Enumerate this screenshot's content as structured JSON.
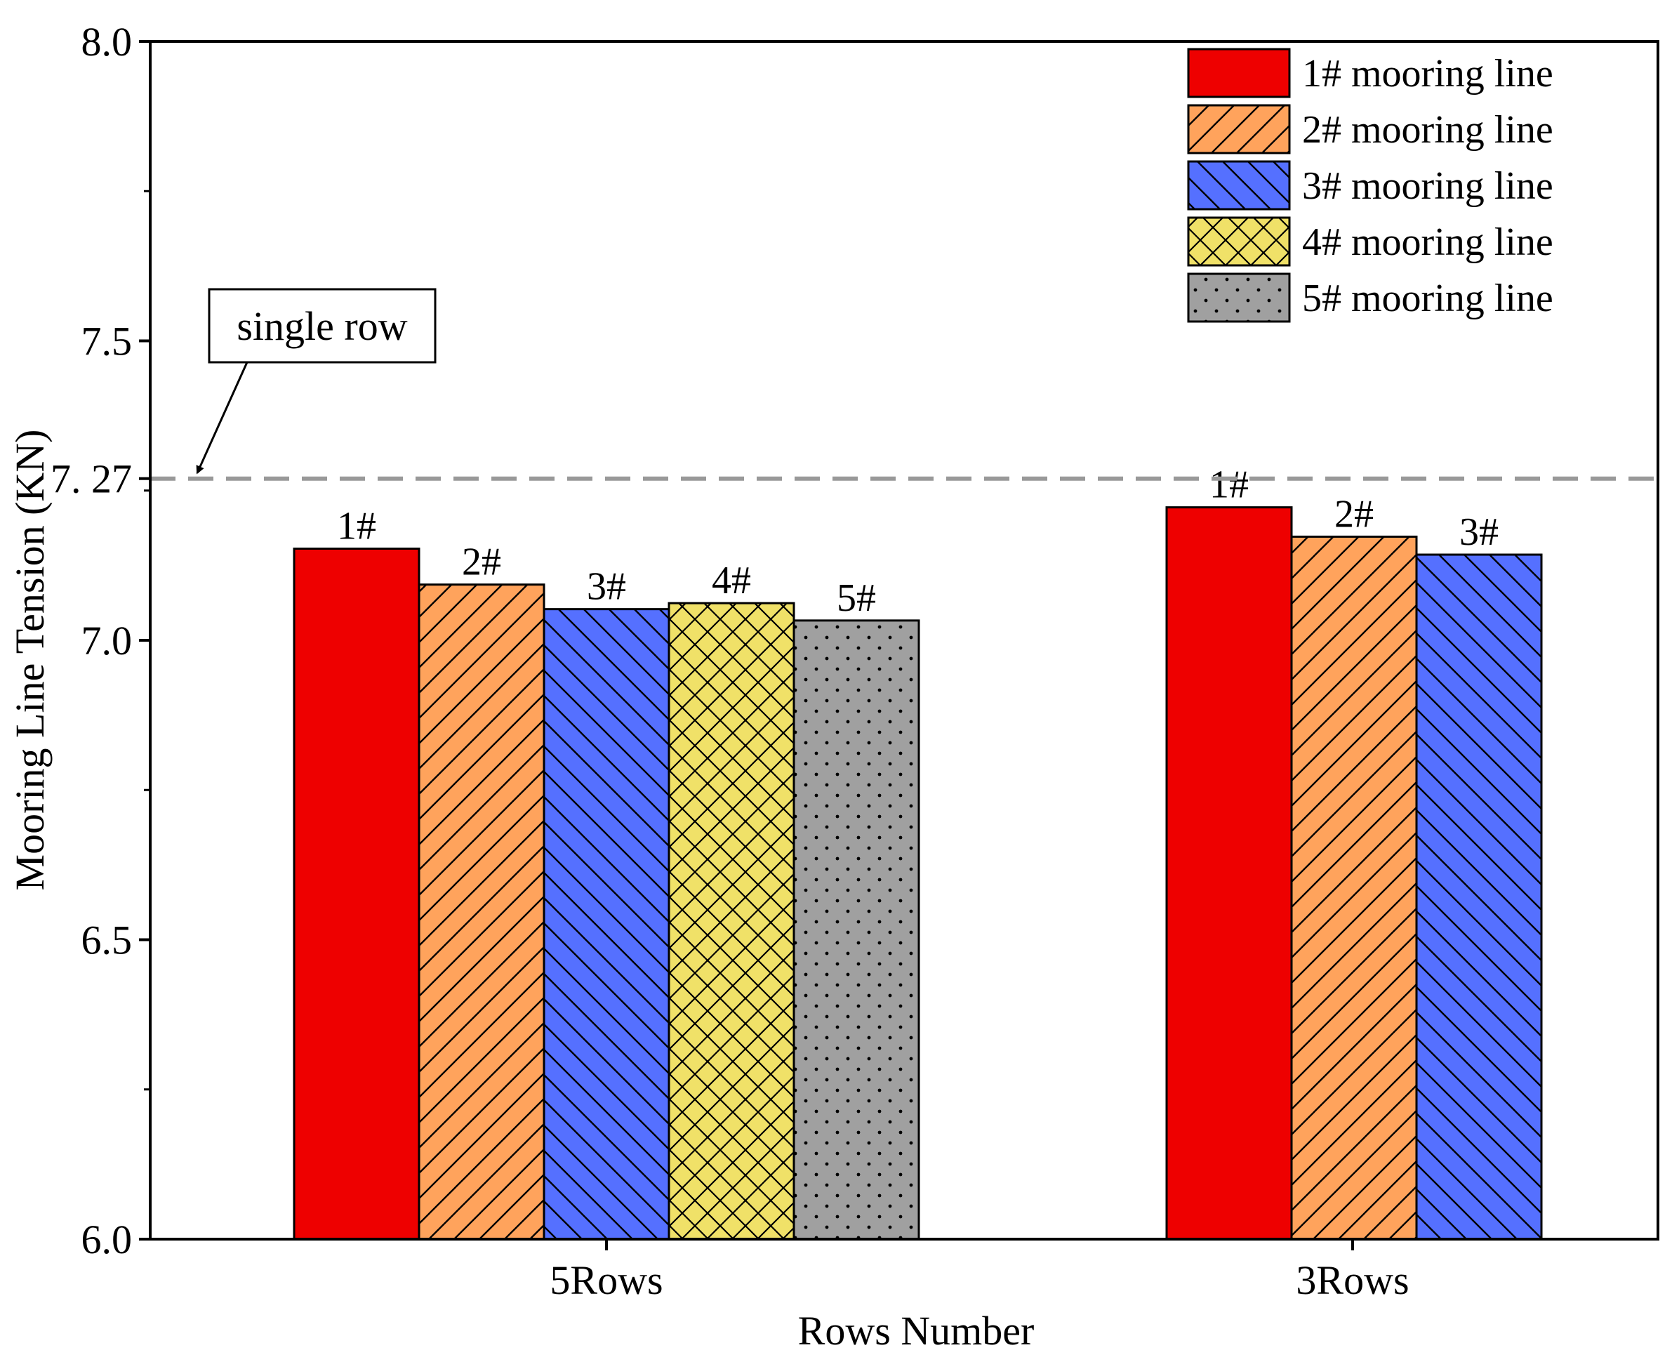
{
  "chart_data": {
    "type": "bar",
    "title": "",
    "xlabel": "Rows Number",
    "ylabel": "Mooring Line Tension (KN)",
    "ylim": [
      6.0,
      8.0
    ],
    "yticks": [
      {
        "value": 6.0,
        "label": "6.0"
      },
      {
        "value": 6.5,
        "label": "6.5"
      },
      {
        "value": 7.0,
        "label": "7.0"
      },
      {
        "value": 7.27,
        "label": "7. 27"
      },
      {
        "value": 7.5,
        "label": "7.5"
      },
      {
        "value": 8.0,
        "label": "8.0"
      }
    ],
    "grid": false,
    "legend_position": "top-right",
    "groups": [
      {
        "name": "5Rows",
        "bars": [
          {
            "series": 0,
            "label": "1#",
            "value": 7.153
          },
          {
            "series": 1,
            "label": "2#",
            "value": 7.093
          },
          {
            "series": 2,
            "label": "3#",
            "value": 7.052
          },
          {
            "series": 3,
            "label": "4#",
            "value": 7.062
          },
          {
            "series": 4,
            "label": "5#",
            "value": 7.033
          }
        ]
      },
      {
        "name": "3Rows",
        "bars": [
          {
            "series": 0,
            "label": "1#",
            "value": 7.222
          },
          {
            "series": 1,
            "label": "2#",
            "value": 7.173
          },
          {
            "series": 2,
            "label": "3#",
            "value": 7.143
          }
        ]
      }
    ],
    "series": [
      {
        "name": "1# mooring line",
        "color": "#ee0000",
        "pattern": "solid"
      },
      {
        "name": "2# mooring line",
        "color": "#ffa35c",
        "pattern": "hatch-forward"
      },
      {
        "name": "3# mooring line",
        "color": "#5570ff",
        "pattern": "hatch-back"
      },
      {
        "name": "4# mooring line",
        "color": "#f0e168",
        "pattern": "crosshatch"
      },
      {
        "name": "5# mooring line",
        "color": "#a0a0a0",
        "pattern": "dots"
      }
    ],
    "reference_line": {
      "value": 7.27,
      "color": "#999999",
      "style": "dashed"
    },
    "annotation": {
      "text": "single row",
      "target_value": 7.27
    }
  }
}
